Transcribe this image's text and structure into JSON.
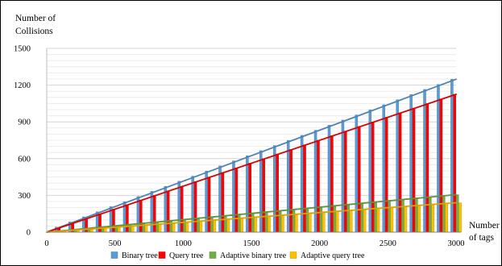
{
  "chart_data": {
    "type": "bar",
    "ylabel_lines": [
      "Number  of",
      "Collisions"
    ],
    "xlabel_lines": [
      "Number",
      "of tags"
    ],
    "ylim": [
      0,
      1500
    ],
    "y_ticks": [
      0,
      300,
      600,
      900,
      1200,
      1500
    ],
    "xlim": [
      0,
      3000
    ],
    "x_ticks": [
      0,
      500,
      1000,
      1500,
      2000,
      2500,
      3000
    ],
    "grid": true,
    "legend_position": "bottom",
    "x": [
      100,
      200,
      300,
      400,
      500,
      600,
      700,
      800,
      900,
      1000,
      1100,
      1200,
      1300,
      1400,
      1500,
      1600,
      1700,
      1800,
      1900,
      2000,
      2100,
      2200,
      2300,
      2400,
      2500,
      2600,
      2700,
      2800,
      2900,
      3000
    ],
    "series": [
      {
        "name": "Binary tree",
        "color": "#5b9bd5",
        "values": [
          41,
          83,
          125,
          166,
          208,
          249,
          291,
          333,
          374,
          416,
          457,
          499,
          541,
          582,
          624,
          665,
          707,
          749,
          790,
          832,
          873,
          915,
          957,
          998,
          1040,
          1081,
          1123,
          1165,
          1206,
          1248
        ]
      },
      {
        "name": "Query tree",
        "color": "#ff0000",
        "values": [
          38,
          75,
          113,
          150,
          188,
          225,
          263,
          300,
          338,
          375,
          413,
          450,
          488,
          525,
          563,
          600,
          638,
          675,
          713,
          750,
          788,
          825,
          863,
          900,
          938,
          975,
          1013,
          1050,
          1088,
          1125
        ]
      },
      {
        "name": "Adaptive binary tree",
        "color": "#70ad47",
        "values": [
          10,
          20,
          31,
          41,
          51,
          61,
          71,
          82,
          92,
          102,
          112,
          122,
          133,
          143,
          153,
          163,
          173,
          184,
          194,
          204,
          214,
          224,
          235,
          245,
          255,
          265,
          275,
          286,
          296,
          306
        ]
      },
      {
        "name": "Adaptive query tree",
        "color": "#ffc000",
        "values": [
          8,
          16,
          24,
          32,
          40,
          48,
          56,
          64,
          72,
          80,
          88,
          96,
          104,
          112,
          120,
          128,
          136,
          144,
          152,
          160,
          168,
          176,
          184,
          192,
          200,
          208,
          216,
          224,
          232,
          240
        ]
      }
    ]
  }
}
